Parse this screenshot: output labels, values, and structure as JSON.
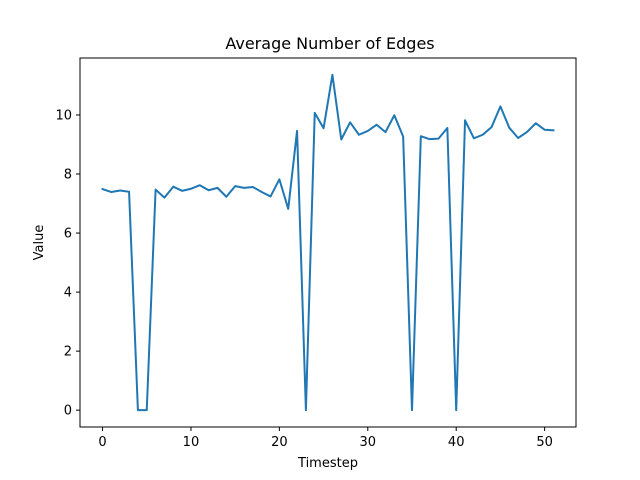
{
  "chart_data": {
    "type": "line",
    "title": "Average Number of Edges",
    "xlabel": "Timestep",
    "ylabel": "Value",
    "xlim": [
      -2.55,
      53.55
    ],
    "ylim": [
      -0.57,
      11.93
    ],
    "xticks": [
      0,
      10,
      20,
      30,
      40,
      50
    ],
    "yticks": [
      0,
      2,
      4,
      6,
      8,
      10
    ],
    "grid": false,
    "series": [
      {
        "color": "#1f77b4",
        "x": [
          0,
          1,
          2,
          3,
          4,
          5,
          6,
          7,
          8,
          9,
          10,
          11,
          12,
          13,
          14,
          15,
          16,
          17,
          18,
          19,
          20,
          21,
          22,
          23,
          24,
          25,
          26,
          27,
          28,
          29,
          30,
          31,
          32,
          33,
          34,
          35,
          36,
          37,
          38,
          39,
          40,
          41,
          42,
          43,
          44,
          45,
          46,
          47,
          48,
          49,
          50,
          51
        ],
        "y": [
          7.49,
          7.39,
          7.44,
          7.4,
          0.0,
          0.0,
          7.47,
          7.2,
          7.57,
          7.43,
          7.5,
          7.62,
          7.45,
          7.53,
          7.23,
          7.59,
          7.53,
          7.56,
          7.39,
          7.24,
          7.82,
          6.82,
          9.46,
          0.0,
          10.07,
          9.55,
          11.36,
          9.17,
          9.75,
          9.33,
          9.46,
          9.67,
          9.42,
          9.99,
          9.27,
          0.0,
          9.28,
          9.18,
          9.2,
          9.56,
          0.0,
          9.82,
          9.21,
          9.33,
          9.59,
          10.29,
          9.57,
          9.22,
          9.42,
          9.72,
          9.5,
          9.48
        ]
      }
    ]
  }
}
